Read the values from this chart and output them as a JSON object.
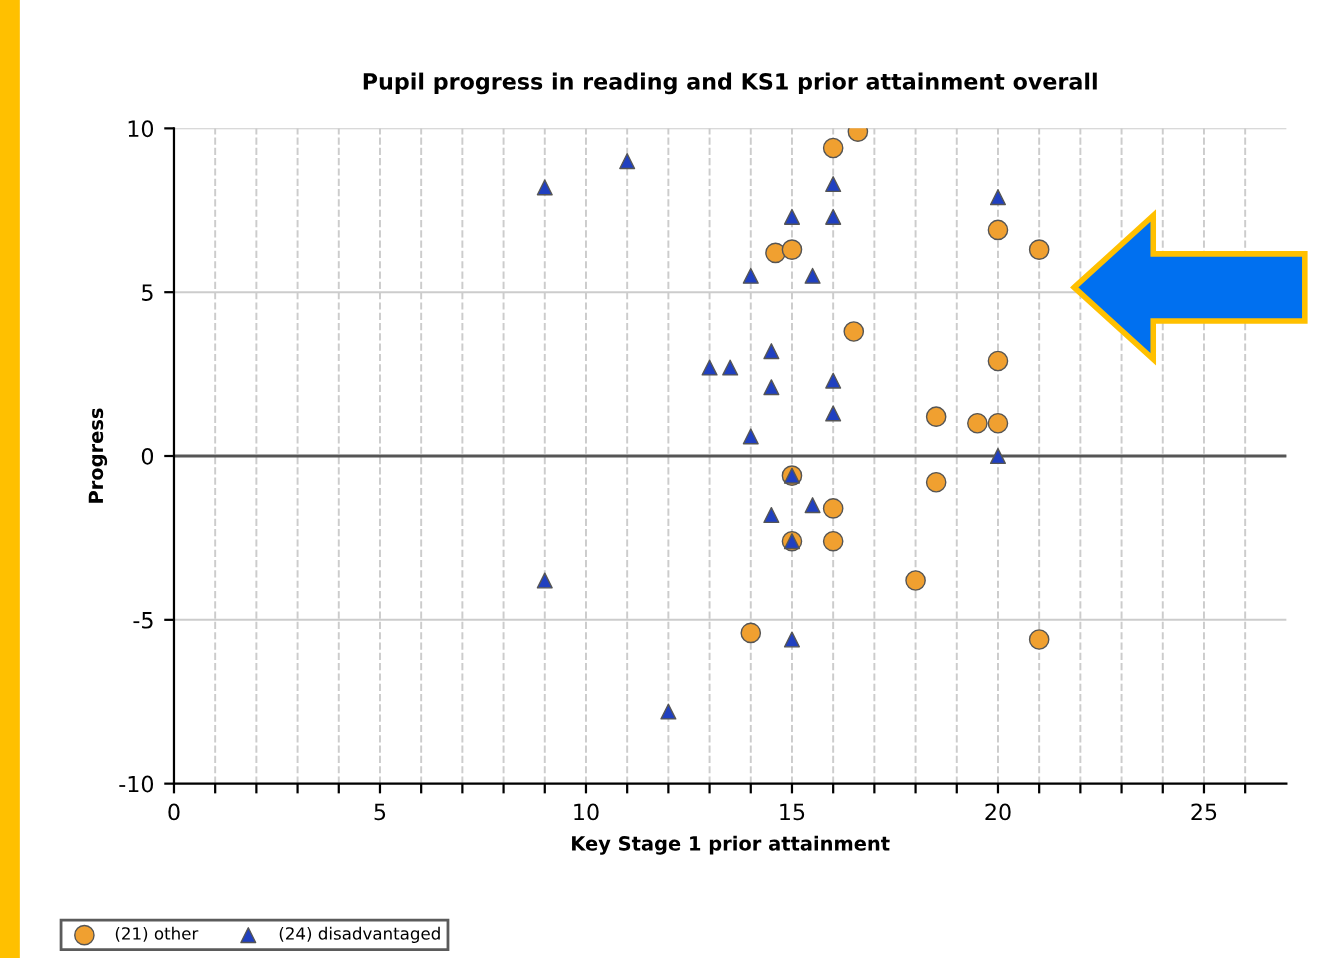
{
  "chart_data": {
    "type": "scatter",
    "title": "Pupil progress in reading and KS1 prior attainment overall",
    "xlabel": "Key Stage 1 prior attainment",
    "ylabel": "Progress",
    "series": [
      {
        "name": "(21) other",
        "color": "#f0a030",
        "marker": "circle",
        "x": [
          16,
          16.6,
          14.6,
          15,
          20,
          21,
          16.5,
          20,
          18.5,
          19.5,
          20,
          15,
          18.5,
          16,
          16,
          15,
          18,
          14,
          21
        ],
        "values": [
          9.4,
          9.9,
          6.2,
          6.3,
          6.9,
          6.3,
          3.8,
          2.9,
          1.2,
          1.0,
          1.0,
          -0.6,
          -0.8,
          -1.6,
          -2.6,
          -2.6,
          -3.8,
          -5.4,
          -5.6
        ]
      },
      {
        "name": "(24) disadvantaged",
        "color": "#2040c0",
        "marker": "triangle",
        "x": [
          9,
          11,
          16,
          15,
          16,
          20,
          14,
          15.5,
          13,
          13.5,
          14.5,
          14.5,
          16,
          16,
          14,
          20,
          15,
          15.5,
          14.5,
          15,
          9,
          15,
          12
        ],
        "values": [
          8.2,
          9.0,
          8.3,
          7.3,
          7.3,
          7.9,
          5.5,
          5.5,
          2.7,
          2.7,
          3.2,
          2.1,
          2.3,
          1.3,
          0.6,
          0,
          -0.6,
          -1.5,
          -1.8,
          -2.6,
          -3.8,
          -5.6,
          -7.8
        ]
      }
    ],
    "xlim": [
      0,
      27
    ],
    "ylim": [
      -10,
      10
    ],
    "xticks": [
      0,
      {
        "value": 1,
        "label": null
      },
      {
        "value": 2,
        "label": null
      },
      {
        "value": 3,
        "label": null
      },
      {
        "value": 4,
        "label": null
      },
      5,
      {
        "value": 6,
        "label": null
      },
      {
        "value": 7,
        "label": null
      },
      {
        "value": 8,
        "label": null
      },
      {
        "value": 9,
        "label": null
      },
      10,
      {
        "value": 11,
        "label": null
      },
      {
        "value": 12,
        "label": null
      },
      {
        "value": 13,
        "label": null
      },
      {
        "value": 14,
        "label": null
      },
      15,
      {
        "value": 16,
        "label": null
      },
      {
        "value": 17,
        "label": null
      },
      {
        "value": 18,
        "label": null
      },
      {
        "value": 19,
        "label": null
      },
      20,
      {
        "value": 21,
        "label": null
      },
      {
        "value": 22,
        "label": null
      },
      {
        "value": 23,
        "label": null
      },
      {
        "value": 24,
        "label": null
      },
      25,
      {
        "value": 26,
        "label": null
      }
    ],
    "yticks": [
      -10,
      -5,
      0,
      5,
      10
    ],
    "ref_lines": [
      {
        "axis": "y",
        "value": 0,
        "label": null,
        "color": "#555555"
      }
    ],
    "grid": true,
    "legend": "bottom left"
  }
}
